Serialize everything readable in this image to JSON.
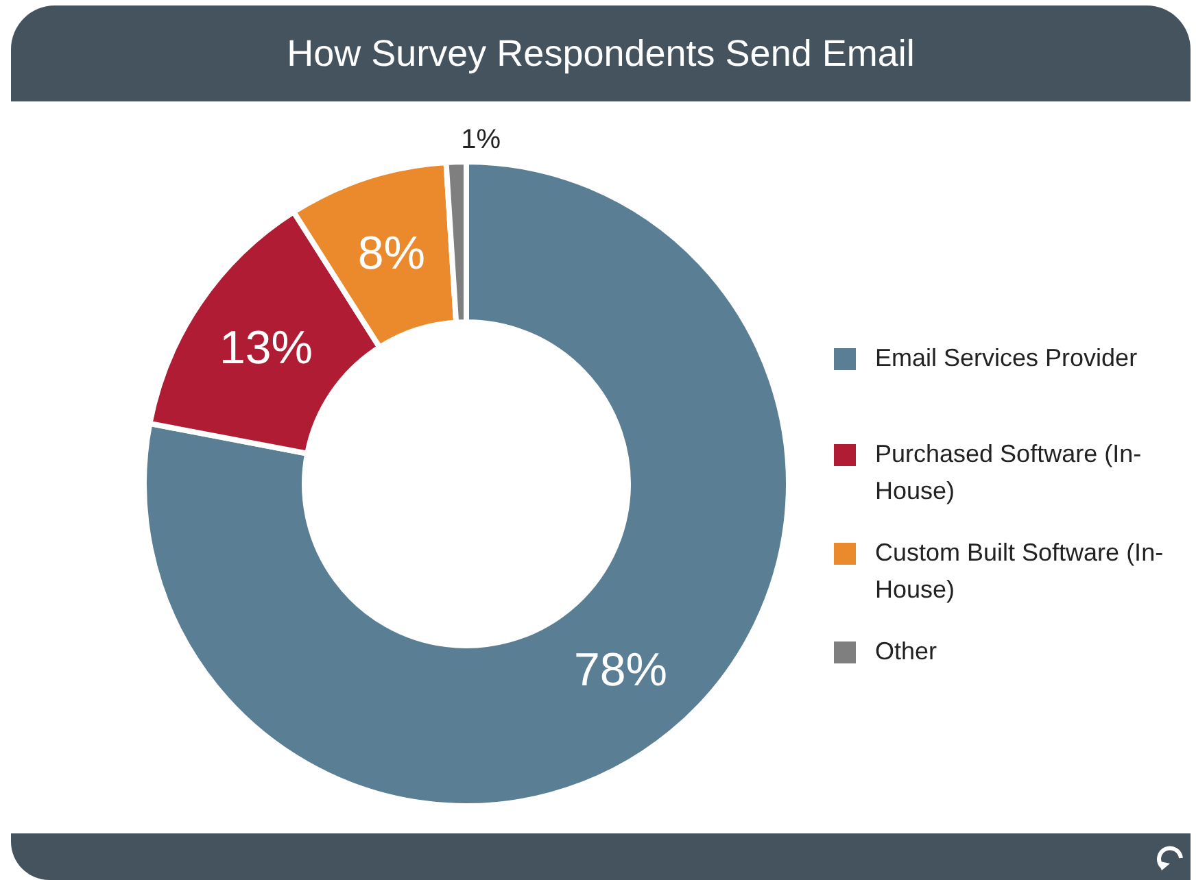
{
  "chart_data": {
    "type": "donut",
    "title": "How Survey Respondents Send Email",
    "categories": [
      "Email Services Provider",
      "Purchased Software (In-House)",
      "Custom Built Software (In-House)",
      "Other"
    ],
    "values": [
      78,
      13,
      8,
      1
    ],
    "colors": [
      "#5a7f94",
      "#b01c33",
      "#ea8a2c",
      "#7f7f7f"
    ],
    "value_labels": [
      "78%",
      "13%",
      "8%",
      "1%"
    ],
    "legend": "right"
  }
}
